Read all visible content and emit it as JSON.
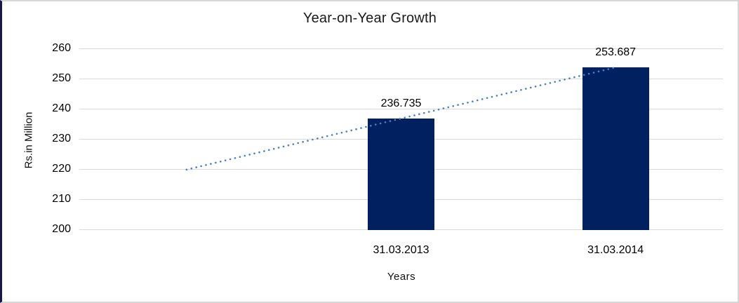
{
  "chart_data": {
    "type": "bar",
    "title": "Year-on-Year Growth",
    "xlabel": "Years",
    "ylabel": "Rs.in Million",
    "categories": [
      "31.03.2013",
      "31.03.2014"
    ],
    "values": [
      236.735,
      253.687
    ],
    "data_labels": [
      "236.735",
      "253.687"
    ],
    "ylim": [
      200,
      260
    ],
    "yticks": [
      200,
      210,
      220,
      230,
      240,
      250,
      260
    ],
    "grid": "horizontal",
    "legend": "none",
    "bar_color": "#002060",
    "gridline_color": "#d9d9d9",
    "trendline": {
      "style": "dotted",
      "color": "#4a80c0",
      "start_value": 219.8,
      "end_value": 253.7
    }
  },
  "frame": {
    "background": "#ffffff",
    "border_color": "#d6d6d6",
    "left_edge_color": "#17174b"
  }
}
